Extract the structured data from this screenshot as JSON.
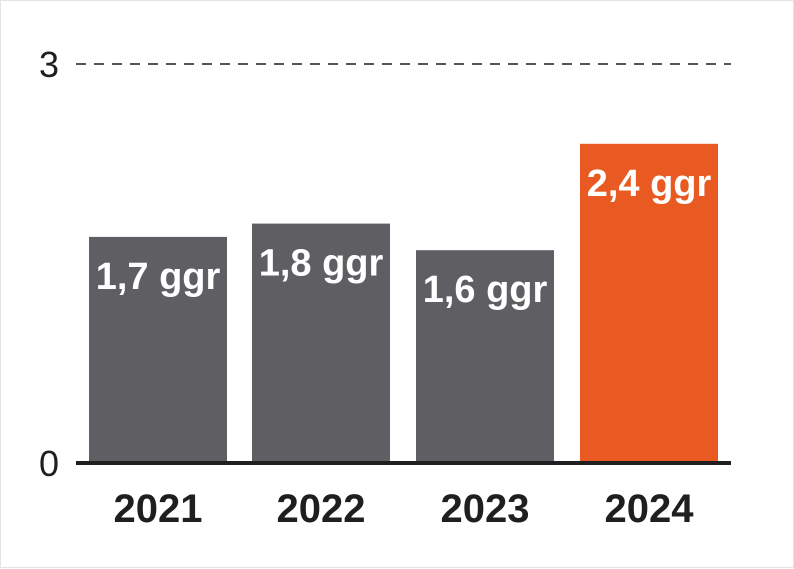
{
  "chart_data": {
    "type": "bar",
    "title": "",
    "xlabel": "",
    "ylabel": "",
    "categories": [
      "2021",
      "2022",
      "2023",
      "2024"
    ],
    "values": [
      1.7,
      1.8,
      1.6,
      2.4
    ],
    "data_labels": [
      "1,7 ggr",
      "1,8 ggr",
      "1,6 ggr",
      "2,4 ggr"
    ],
    "ylim": [
      0,
      3
    ],
    "y_ticks": [
      {
        "value": 0,
        "label": "0"
      },
      {
        "value": 3,
        "label": "3"
      }
    ],
    "grid": "dashed line at top tick only",
    "legend": "none",
    "colors": {
      "default_bar": "#5f5e62",
      "highlight_bar": "#e85a22",
      "axis": "#1f1f1f",
      "gridline": "#1f1f1f",
      "label_text": "#ffffff"
    },
    "highlight_category": "2024"
  }
}
